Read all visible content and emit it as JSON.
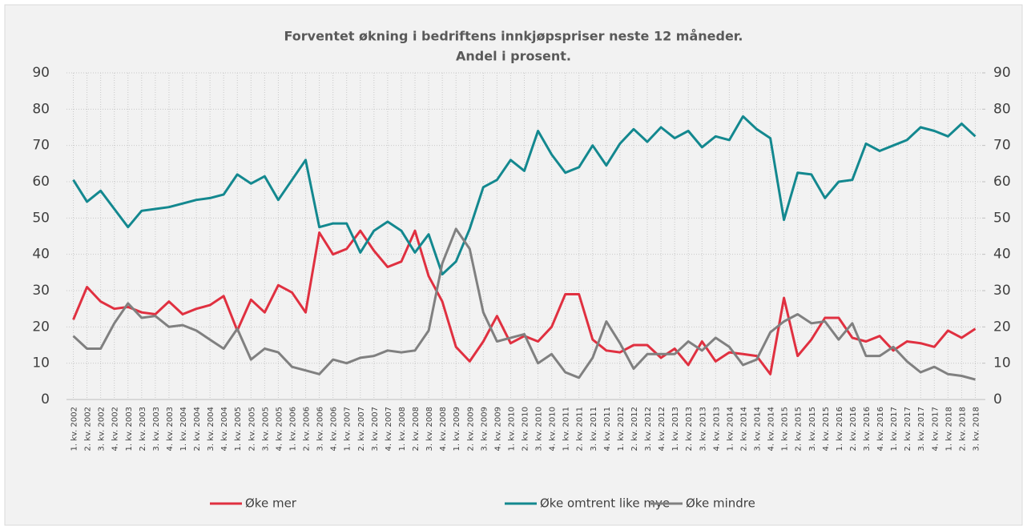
{
  "chart_data": {
    "type": "line",
    "title": "Forventet økning i bedriftens innkjøpspriser neste 12 måneder.",
    "subtitle": "Andel i prosent.",
    "categories": [
      "1. kv. 2002",
      "2. kv. 2002",
      "3. kv. 2002",
      "4. kv. 2002",
      "1. kv. 2003",
      "2. kv. 2003",
      "3. kv. 2003",
      "4. kv. 2003",
      "1. kv. 2004",
      "2. kv. 2004",
      "3. kv. 2004",
      "4. kv. 2004",
      "1. kv. 2005",
      "2. kv. 2005",
      "3. kv. 2005",
      "4. kv. 2005",
      "1. kv. 2006",
      "2. kv. 2006",
      "3. kv. 2006",
      "4. kv. 2006",
      "1. kv. 2007",
      "2. kv. 2007",
      "3. kv. 2007",
      "4. kv. 2007",
      "1. kv. 2008",
      "2. kv. 2008",
      "3. kv. 2008",
      "4. kv. 2008",
      "1. kv. 2009",
      "2. kv. 2009",
      "3. kv. 2009",
      "4. kv. 2009",
      "1. kv. 2010",
      "2. kv. 2010",
      "3. kv. 2010",
      "4. kv. 2010",
      "1. kv. 2011",
      "2. kv. 2011",
      "3. kv. 2011",
      "4. kv. 2011",
      "1. kv. 2012",
      "2. kv. 2012",
      "3. kv. 2012",
      "4. kv. 2012",
      "1. kv. 2013",
      "2. kv. 2013",
      "3. kv. 2013",
      "4. kv. 2013",
      "1. kv. 2014",
      "2. kv. 2014",
      "3. kv. 2014",
      "4. kv. 2014",
      "1. kv. 2015",
      "2. kv. 2015",
      "3. kv. 2015",
      "4. kv. 2015",
      "1. kv. 2016",
      "2. kv. 2016",
      "3. kv. 2016",
      "4. kv. 2016",
      "1. kv. 2017",
      "2. kv. 2017",
      "3. kv. 2017",
      "4. kv. 2017",
      "1. kv. 2018",
      "2. kv. 2018",
      "3. kv. 2018"
    ],
    "series": [
      {
        "name": "Øke mer",
        "color": "#e03040",
        "values": [
          22,
          31,
          27,
          25,
          25.5,
          24,
          23.5,
          27,
          23.5,
          25,
          26,
          28.5,
          19,
          27.5,
          24,
          31.5,
          29.5,
          24,
          46,
          40,
          41.5,
          46.5,
          41,
          36.5,
          38,
          46.5,
          34,
          27,
          14.5,
          10.5,
          16,
          23,
          15.5,
          17.5,
          16,
          20,
          29,
          29,
          16.5,
          13.5,
          13,
          15,
          15,
          11.5,
          14,
          9.5,
          16,
          10.5,
          13,
          12.5,
          12,
          7,
          28,
          12,
          16.5,
          22.5,
          22.5,
          17,
          16,
          17.5,
          13.5,
          16,
          15.5,
          14.5,
          19,
          17,
          19.5
        ]
      },
      {
        "name": "Øke omtrent like mye",
        "color": "#13888f",
        "values": [
          60.5,
          54.5,
          57.5,
          52.5,
          47.5,
          52,
          52.5,
          53,
          54,
          55,
          55.5,
          56.5,
          62,
          59.5,
          61.5,
          55,
          60.5,
          66,
          47.5,
          48.5,
          48.5,
          40.5,
          46.5,
          49,
          46.5,
          40.5,
          45.5,
          34.5,
          38,
          47,
          58.5,
          60.5,
          66,
          63,
          74,
          67.5,
          62.5,
          64,
          70,
          64.5,
          70.5,
          74.5,
          71,
          75,
          72,
          74,
          69.5,
          72.5,
          71.5,
          78,
          74.5,
          72,
          49.5,
          62.5,
          62,
          55.5,
          60,
          60.5,
          70.5,
          68.5,
          70,
          71.5,
          75,
          74,
          72.5,
          76,
          72.5
        ]
      },
      {
        "name": "Øke mindre",
        "color": "#808080",
        "values": [
          17.5,
          14,
          14,
          21,
          26.5,
          22.5,
          23,
          20,
          20.5,
          19,
          16.5,
          14,
          19.5,
          11,
          14,
          13,
          9,
          8,
          7,
          11,
          10,
          11.5,
          12,
          13.5,
          13,
          13.5,
          19,
          37.5,
          47,
          41.5,
          24,
          16,
          17,
          18,
          10,
          12.5,
          7.5,
          6,
          11.5,
          21.5,
          15.5,
          8.5,
          12.5,
          12.5,
          12.5,
          16,
          13.5,
          17,
          14.5,
          9.5,
          11,
          18.5,
          21.5,
          23.5,
          21,
          21.5,
          16.5,
          21,
          12,
          12,
          14.5,
          10.5,
          7.5,
          9,
          7,
          6.5,
          5.5
        ]
      }
    ],
    "ylim": [
      0,
      90
    ],
    "yticks": [
      0,
      10,
      20,
      30,
      40,
      50,
      60,
      70,
      80,
      90
    ],
    "y2lim": [
      0,
      90
    ],
    "y2ticks": [
      0,
      10,
      20,
      30,
      40,
      50,
      60,
      70,
      80,
      90
    ],
    "grid": true,
    "legend": "bottom"
  }
}
